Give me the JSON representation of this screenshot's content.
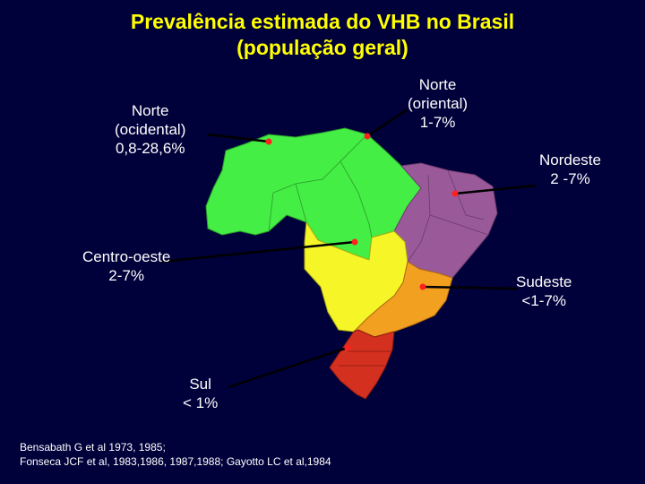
{
  "title": {
    "line1": "Prevalência estimada do VHB no Brasil",
    "line2": "(população geral)"
  },
  "regions": {
    "norte_ocidental": {
      "line1": "Norte",
      "line2": "(ocidental)",
      "line3": "0,8-28,6%",
      "color": "#44ee44"
    },
    "norte_oriental": {
      "line1": "Norte",
      "line2": "(oriental)",
      "line3": "1-7%",
      "color": "#44ee44"
    },
    "nordeste": {
      "line1": "Nordeste",
      "line2": "2 -7%",
      "color": "#9a5a9a"
    },
    "centro_oeste": {
      "line1": "Centro-oeste",
      "line2": "2-7%",
      "color": "#f5f528"
    },
    "sudeste": {
      "line1": "Sudeste",
      "line2": "<1-7%",
      "color": "#f2a020"
    },
    "sul": {
      "line1": "Sul",
      "line2": "< 1%",
      "color": "#d43020"
    }
  },
  "references": {
    "line1": "Bensabath G et al 1973, 1985;",
    "line2": "Fonseca JCF et al, 1983,1986, 1987,1988; Gayotto LC et al,1984"
  },
  "colors": {
    "background": "#00003a",
    "title": "#ffff00",
    "marker": "#ff2020"
  }
}
